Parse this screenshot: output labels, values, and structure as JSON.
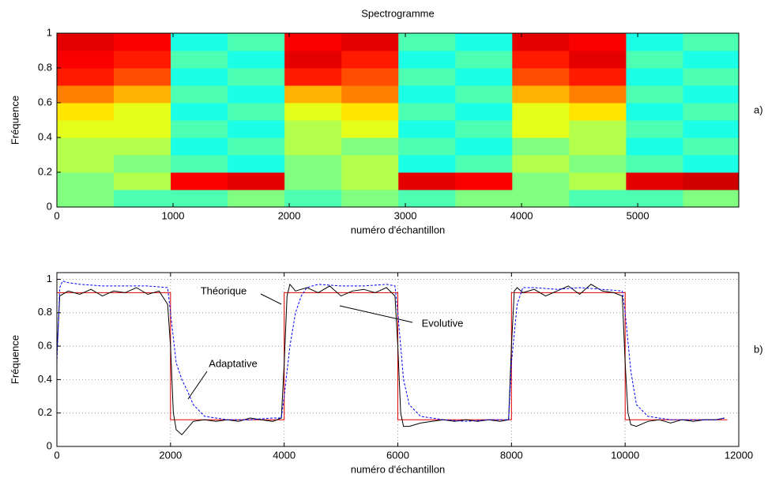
{
  "chart_data": [
    {
      "type": "heatmap",
      "title": "Spectrogramme",
      "xlabel": "numéro d'échantillon",
      "ylabel": "Fréquence",
      "panel_label": "a)",
      "colormap": "jet",
      "clim": [
        0,
        1
      ],
      "xbins": [
        0,
        490,
        980,
        1470,
        1960,
        2450,
        2940,
        3430,
        3920,
        4410,
        4900,
        5390,
        5870
      ],
      "ybins": [
        0,
        0.1,
        0.2,
        0.3,
        0.4,
        0.5,
        0.6,
        0.7,
        0.8,
        0.9,
        1
      ],
      "z": [
        [
          0.5,
          0.45,
          0.45,
          0.5,
          0.45,
          0.5,
          0.45,
          0.5,
          0.5,
          0.45,
          0.45,
          0.5
        ],
        [
          0.5,
          0.55,
          0.88,
          0.9,
          0.5,
          0.55,
          0.9,
          0.88,
          0.5,
          0.55,
          0.9,
          0.92
        ],
        [
          0.55,
          0.5,
          0.45,
          0.4,
          0.5,
          0.55,
          0.4,
          0.45,
          0.55,
          0.5,
          0.45,
          0.4
        ],
        [
          0.55,
          0.55,
          0.4,
          0.45,
          0.55,
          0.5,
          0.45,
          0.4,
          0.5,
          0.55,
          0.4,
          0.45
        ],
        [
          0.6,
          0.6,
          0.45,
          0.4,
          0.55,
          0.6,
          0.4,
          0.45,
          0.6,
          0.55,
          0.45,
          0.4
        ],
        [
          0.65,
          0.6,
          0.4,
          0.45,
          0.6,
          0.65,
          0.45,
          0.4,
          0.6,
          0.65,
          0.4,
          0.45
        ],
        [
          0.75,
          0.7,
          0.45,
          0.4,
          0.7,
          0.75,
          0.4,
          0.45,
          0.7,
          0.75,
          0.45,
          0.4
        ],
        [
          0.85,
          0.8,
          0.4,
          0.45,
          0.85,
          0.8,
          0.45,
          0.4,
          0.8,
          0.85,
          0.4,
          0.45
        ],
        [
          0.88,
          0.85,
          0.45,
          0.4,
          0.9,
          0.85,
          0.4,
          0.45,
          0.85,
          0.9,
          0.45,
          0.4
        ],
        [
          0.9,
          0.88,
          0.4,
          0.45,
          0.88,
          0.9,
          0.45,
          0.4,
          0.9,
          0.88,
          0.4,
          0.45
        ]
      ],
      "xlim": [
        0,
        5870
      ],
      "ylim": [
        0,
        1
      ],
      "xticks": [
        0,
        1000,
        2000,
        3000,
        4000,
        5000
      ],
      "yticks": [
        0,
        0.2,
        0.4,
        0.6,
        0.8,
        1
      ],
      "grid": false
    },
    {
      "type": "line",
      "xlabel": "numéro d'échantillon",
      "ylabel": "Fréquence",
      "panel_label": "b)",
      "xlim": [
        0,
        12000
      ],
      "ylim": [
        0,
        1.04
      ],
      "xticks": [
        0,
        2000,
        4000,
        6000,
        8000,
        10000,
        12000
      ],
      "yticks": [
        0,
        0.2,
        0.4,
        0.6,
        0.8,
        1
      ],
      "grid": true,
      "series": [
        {
          "name": "Théorique",
          "color": "#e00000",
          "linestyle": "solid",
          "x": [
            0,
            2000,
            2000,
            4000,
            4000,
            6000,
            6000,
            8000,
            8000,
            10000,
            10000,
            11800
          ],
          "values": [
            0.92,
            0.92,
            0.16,
            0.16,
            0.92,
            0.92,
            0.16,
            0.16,
            0.92,
            0.92,
            0.16,
            0.16
          ]
        },
        {
          "name": "Evolutive",
          "color": "#000000",
          "linestyle": "solid",
          "x": [
            0,
            50,
            200,
            400,
            600,
            800,
            1000,
            1200,
            1400,
            1600,
            1800,
            1950,
            2000,
            2050,
            2100,
            2200,
            2400,
            2600,
            2800,
            3000,
            3200,
            3400,
            3600,
            3800,
            3950,
            4000,
            4050,
            4100,
            4200,
            4400,
            4600,
            4800,
            5000,
            5200,
            5400,
            5600,
            5800,
            5950,
            6000,
            6050,
            6100,
            6200,
            6400,
            6600,
            6800,
            7000,
            7200,
            7400,
            7600,
            7800,
            7950,
            8000,
            8050,
            8100,
            8200,
            8400,
            8600,
            8800,
            9000,
            9200,
            9400,
            9600,
            9800,
            9950,
            10000,
            10050,
            10100,
            10200,
            10400,
            10600,
            10800,
            11000,
            11200,
            11400,
            11600,
            11750
          ],
          "values": [
            0.55,
            0.9,
            0.93,
            0.91,
            0.94,
            0.9,
            0.93,
            0.92,
            0.95,
            0.91,
            0.93,
            0.85,
            0.6,
            0.2,
            0.1,
            0.07,
            0.15,
            0.16,
            0.15,
            0.16,
            0.15,
            0.17,
            0.16,
            0.15,
            0.17,
            0.5,
            0.9,
            0.97,
            0.93,
            0.95,
            0.92,
            0.96,
            0.9,
            0.93,
            0.94,
            0.92,
            0.95,
            0.9,
            0.6,
            0.2,
            0.12,
            0.12,
            0.14,
            0.15,
            0.16,
            0.15,
            0.16,
            0.15,
            0.16,
            0.15,
            0.16,
            0.6,
            0.93,
            0.95,
            0.92,
            0.94,
            0.9,
            0.93,
            0.96,
            0.91,
            0.97,
            0.93,
            0.92,
            0.9,
            0.5,
            0.2,
            0.13,
            0.12,
            0.15,
            0.16,
            0.14,
            0.16,
            0.15,
            0.16,
            0.16,
            0.17
          ]
        },
        {
          "name": "Adaptative",
          "color": "#0000ff",
          "linestyle": "dashed",
          "x": [
            0,
            50,
            100,
            200,
            400,
            800,
            1200,
            1600,
            1950,
            2000,
            2100,
            2200,
            2300,
            2400,
            2600,
            3000,
            3400,
            3800,
            3950,
            4000,
            4100,
            4200,
            4300,
            4400,
            4600,
            5000,
            5400,
            5800,
            5950,
            6000,
            6100,
            6200,
            6400,
            6800,
            7200,
            7600,
            7950,
            8000,
            8100,
            8200,
            8400,
            8800,
            9200,
            9600,
            9950,
            10000,
            10100,
            10200,
            10400,
            10800,
            11200,
            11600,
            11750
          ],
          "values": [
            0.5,
            0.95,
            0.99,
            0.98,
            0.97,
            0.96,
            0.96,
            0.96,
            0.95,
            0.8,
            0.5,
            0.4,
            0.33,
            0.25,
            0.18,
            0.16,
            0.16,
            0.17,
            0.17,
            0.3,
            0.6,
            0.8,
            0.9,
            0.95,
            0.97,
            0.96,
            0.96,
            0.97,
            0.96,
            0.8,
            0.4,
            0.25,
            0.18,
            0.16,
            0.15,
            0.16,
            0.16,
            0.5,
            0.85,
            0.95,
            0.95,
            0.94,
            0.95,
            0.94,
            0.93,
            0.8,
            0.45,
            0.25,
            0.18,
            0.16,
            0.16,
            0.16,
            0.17
          ]
        }
      ]
    }
  ]
}
